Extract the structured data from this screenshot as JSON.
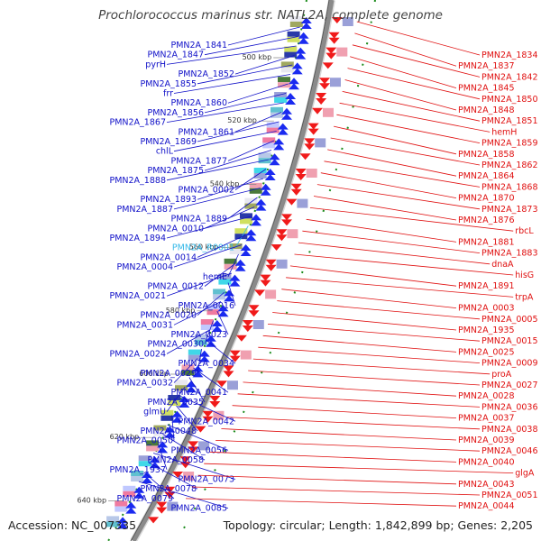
{
  "title": "Prochlorococcus marinus str. NATL2A, complete genome",
  "footer": {
    "accession": "Accession: NC_007335",
    "topology": "Topology: circular; Length: 1,842,899 bp; Genes: 2,205"
  },
  "colors": {
    "left_labels": "#1010c8",
    "right_labels": "#e01010",
    "rna_label": "#33b8e8",
    "backbone": "#8a8a8a",
    "ruler_text": "#333333",
    "tick": "#1a8a1a"
  },
  "ruler": [
    "500 kbp",
    "520 kbp",
    "540 kbp",
    "560 kbp",
    "580 kbp",
    "600 kbp",
    "620 kbp",
    "640 kbp"
  ],
  "left_genes": [
    {
      "label": "PMN2A_1841",
      "kind": "gene"
    },
    {
      "label": "PMN2A_1847",
      "kind": "gene"
    },
    {
      "label": "pyrH",
      "kind": "gene"
    },
    {
      "label": "PMN2A_1852",
      "kind": "gene"
    },
    {
      "label": "PMN2A_1855",
      "kind": "gene"
    },
    {
      "label": "frr",
      "kind": "gene"
    },
    {
      "label": "PMN2A_1860",
      "kind": "gene"
    },
    {
      "label": "PMN2A_1856",
      "kind": "gene"
    },
    {
      "label": "PMN2A_1867",
      "kind": "gene"
    },
    {
      "label": "PMN2A_1861",
      "kind": "gene"
    },
    {
      "label": "PMN2A_1869",
      "kind": "gene"
    },
    {
      "label": "chlL",
      "kind": "gene"
    },
    {
      "label": "PMN2A_1877",
      "kind": "gene"
    },
    {
      "label": "PMN2A_1875",
      "kind": "gene"
    },
    {
      "label": "PMN2A_1888",
      "kind": "gene"
    },
    {
      "label": "PMN2A_0002",
      "kind": "gene"
    },
    {
      "label": "PMN2A_1893",
      "kind": "gene"
    },
    {
      "label": "PMN2A_1887",
      "kind": "gene"
    },
    {
      "label": "PMN2A_1889",
      "kind": "gene"
    },
    {
      "label": "PMN2A_0010",
      "kind": "gene"
    },
    {
      "label": "PMN2A_1894",
      "kind": "gene"
    },
    {
      "label": "PMN2A_R0001",
      "kind": "rna"
    },
    {
      "label": "PMN2A_0014",
      "kind": "gene"
    },
    {
      "label": "PMN2A_0004",
      "kind": "gene"
    },
    {
      "label": "hemE",
      "kind": "gene"
    },
    {
      "label": "PMN2A_0012",
      "kind": "gene"
    },
    {
      "label": "PMN2A_0021",
      "kind": "gene"
    },
    {
      "label": "PMN2A_0016",
      "kind": "gene"
    },
    {
      "label": "PMN2A_0020",
      "kind": "gene"
    },
    {
      "label": "PMN2A_0031",
      "kind": "gene"
    },
    {
      "label": "PMN2A_0023",
      "kind": "gene"
    },
    {
      "label": "PMN2A_0030",
      "kind": "gene"
    },
    {
      "label": "PMN2A_0024",
      "kind": "gene"
    },
    {
      "label": "PMN2A_0034",
      "kind": "gene"
    },
    {
      "label": "PMN2A_0029",
      "kind": "gene"
    },
    {
      "label": "PMN2A_0032",
      "kind": "gene"
    },
    {
      "label": "PMN2A_0041",
      "kind": "gene"
    },
    {
      "label": "PMN2A_0035",
      "kind": "gene"
    },
    {
      "label": "glmU",
      "kind": "gene"
    },
    {
      "label": "PMN2A_0042",
      "kind": "gene"
    },
    {
      "label": "PMN2A_0048",
      "kind": "gene"
    },
    {
      "label": "PMN2A_0050",
      "kind": "gene"
    },
    {
      "label": "PMN2A_0056",
      "kind": "gene"
    },
    {
      "label": "PMN2A_0058",
      "kind": "gene"
    },
    {
      "label": "PMN2A_1937",
      "kind": "gene"
    },
    {
      "label": "PMN2A_0073",
      "kind": "gene"
    },
    {
      "label": "PMN2A_0078",
      "kind": "gene"
    },
    {
      "label": "PMN2A_0079",
      "kind": "gene"
    },
    {
      "label": "PMN2A_0085",
      "kind": "gene"
    }
  ],
  "right_genes": [
    {
      "label": "PMN2A_1834",
      "kind": "gene"
    },
    {
      "label": "PMN2A_1837",
      "kind": "gene"
    },
    {
      "label": "PMN2A_1842",
      "kind": "gene"
    },
    {
      "label": "PMN2A_1845",
      "kind": "gene"
    },
    {
      "label": "PMN2A_1850",
      "kind": "gene"
    },
    {
      "label": "PMN2A_1848",
      "kind": "gene"
    },
    {
      "label": "PMN2A_1851",
      "kind": "gene"
    },
    {
      "label": "hemH",
      "kind": "gene"
    },
    {
      "label": "PMN2A_1859",
      "kind": "gene"
    },
    {
      "label": "PMN2A_1858",
      "kind": "gene"
    },
    {
      "label": "PMN2A_1862",
      "kind": "gene"
    },
    {
      "label": "PMN2A_1864",
      "kind": "gene"
    },
    {
      "label": "PMN2A_1868",
      "kind": "gene"
    },
    {
      "label": "PMN2A_1870",
      "kind": "gene"
    },
    {
      "label": "PMN2A_1873",
      "kind": "gene"
    },
    {
      "label": "PMN2A_1876",
      "kind": "gene"
    },
    {
      "label": "rbcL",
      "kind": "gene"
    },
    {
      "label": "PMN2A_1881",
      "kind": "gene"
    },
    {
      "label": "PMN2A_1883",
      "kind": "gene"
    },
    {
      "label": "dnaA",
      "kind": "gene"
    },
    {
      "label": "hisG",
      "kind": "gene"
    },
    {
      "label": "PMN2A_1891",
      "kind": "gene"
    },
    {
      "label": "trpA",
      "kind": "gene"
    },
    {
      "label": "PMN2A_0003",
      "kind": "gene"
    },
    {
      "label": "PMN2A_0005",
      "kind": "gene"
    },
    {
      "label": "PMN2A_1935",
      "kind": "gene"
    },
    {
      "label": "PMN2A_0015",
      "kind": "gene"
    },
    {
      "label": "PMN2A_0025",
      "kind": "gene"
    },
    {
      "label": "PMN2A_0009",
      "kind": "gene"
    },
    {
      "label": "proA",
      "kind": "gene"
    },
    {
      "label": "PMN2A_0027",
      "kind": "gene"
    },
    {
      "label": "PMN2A_0028",
      "kind": "gene"
    },
    {
      "label": "PMN2A_0036",
      "kind": "gene"
    },
    {
      "label": "PMN2A_0037",
      "kind": "gene"
    },
    {
      "label": "PMN2A_0038",
      "kind": "gene"
    },
    {
      "label": "PMN2A_0039",
      "kind": "gene"
    },
    {
      "label": "PMN2A_0046",
      "kind": "gene"
    },
    {
      "label": "PMN2A_0040",
      "kind": "gene"
    },
    {
      "label": "glgA",
      "kind": "gene"
    },
    {
      "label": "PMN2A_0043",
      "kind": "gene"
    },
    {
      "label": "PMN2A_0051",
      "kind": "gene"
    },
    {
      "label": "PMN2A_0044",
      "kind": "gene"
    }
  ]
}
